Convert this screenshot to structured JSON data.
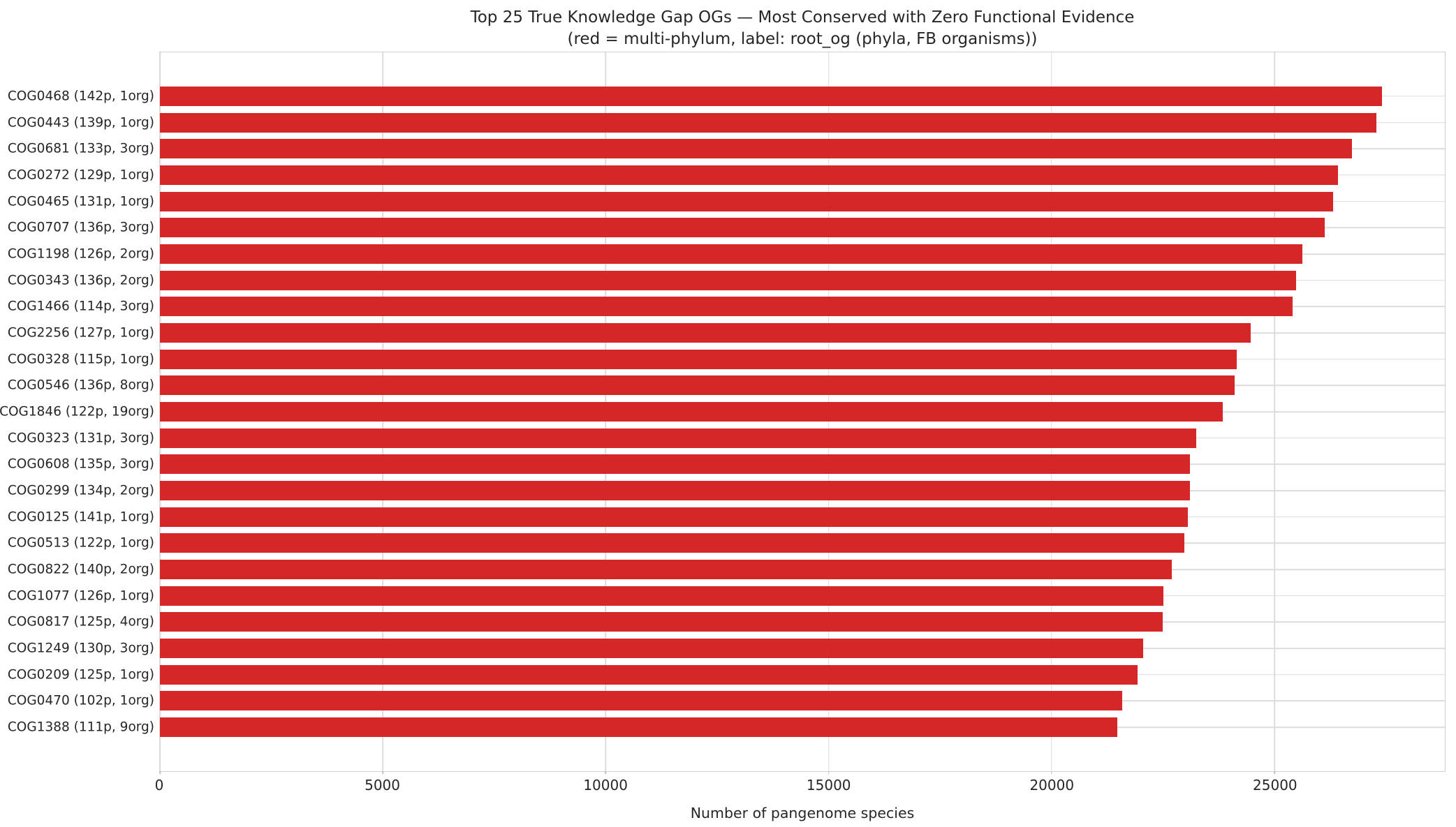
{
  "chart_data": {
    "type": "bar",
    "orientation": "horizontal",
    "title": "Top 25 True Knowledge Gap OGs — Most Conserved with Zero Functional Evidence",
    "subtitle": "(red = multi-phylum, label: root_og (phyla, FB organisms))",
    "xlabel": "Number of pangenome species",
    "ylabel": "",
    "xlim": [
      0,
      28820
    ],
    "xticks": [
      0,
      5000,
      10000,
      15000,
      20000,
      25000
    ],
    "grid": true,
    "legend": "none",
    "bar_color": "#d62728",
    "grid_color": "#dcdcdc",
    "text_color": "#262626",
    "categories": [
      "COG0468 (142p, 1org)",
      "COG0443 (139p, 1org)",
      "COG0681 (133p, 3org)",
      "COG0272 (129p, 1org)",
      "COG0465 (131p, 1org)",
      "COG0707 (136p, 3org)",
      "COG1198 (126p, 2org)",
      "COG0343 (136p, 2org)",
      "COG1466 (114p, 3org)",
      "COG2256 (127p, 1org)",
      "COG0328 (115p, 1org)",
      "COG0546 (136p, 8org)",
      "COG1846 (122p, 19org)",
      "COG0323 (131p, 3org)",
      "COG0608 (135p, 3org)",
      "COG0299 (134p, 2org)",
      "COG0125 (141p, 1org)",
      "COG0513 (122p, 1org)",
      "COG0822 (140p, 2org)",
      "COG1077 (126p, 1org)",
      "COG0817 (125p, 4org)",
      "COG1249 (130p, 3org)",
      "COG0209 (125p, 1org)",
      "COG0470 (102p, 1org)",
      "COG1388 (111p, 9org)"
    ],
    "values": [
      27410,
      27280,
      26730,
      26420,
      26320,
      26120,
      25620,
      25490,
      25400,
      24470,
      24150,
      24110,
      23840,
      23240,
      23110,
      23100,
      23050,
      22980,
      22690,
      22510,
      22490,
      22060,
      21930,
      21590,
      21470
    ]
  }
}
